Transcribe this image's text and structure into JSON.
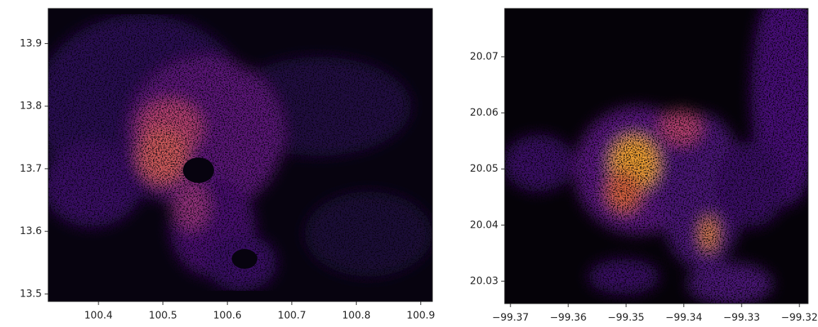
{
  "chart_data": [
    {
      "type": "image",
      "xlim": [
        100.322,
        100.918
      ],
      "ylim": [
        13.488,
        13.956
      ],
      "xticks": [
        100.4,
        100.5,
        100.6,
        100.7,
        100.8,
        100.9
      ],
      "yticks": [
        13.5,
        13.6,
        13.7,
        13.8,
        13.9
      ]
    },
    {
      "type": "image",
      "xlim": [
        -99.371,
        -99.3185
      ],
      "ylim": [
        20.026,
        20.0786
      ],
      "xticks": [
        {
          "value": -99.37,
          "label": "−99.37"
        },
        {
          "value": -99.36,
          "label": "−99.36"
        },
        {
          "value": -99.35,
          "label": "−99.35"
        },
        {
          "value": -99.34,
          "label": "−99.34"
        },
        {
          "value": -99.33,
          "label": "−99.33"
        },
        {
          "value": -99.32,
          "label": "−99.32"
        }
      ],
      "yticks": [
        20.03,
        20.04,
        20.05,
        20.06,
        20.07
      ]
    }
  ]
}
